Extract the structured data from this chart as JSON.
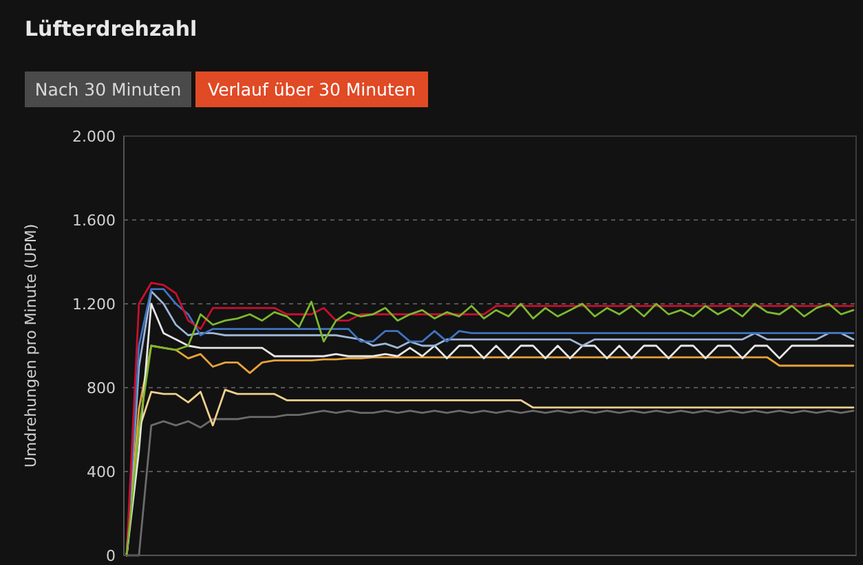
{
  "chart_data": {
    "type": "line",
    "title": "Lüfterdrehzahl",
    "ylabel": "Umdrehungen pro Minute (UPM)",
    "annotations": [
      "Nach 30 Minuten",
      "Verlauf über 30 Minuten"
    ],
    "categories": [
      null,
      null,
      null,
      null,
      null,
      null,
      null,
      null,
      null,
      null,
      null,
      null,
      null,
      null,
      null,
      null,
      null,
      null,
      null,
      null,
      null,
      null,
      null,
      null,
      null,
      null,
      null,
      null,
      null,
      null,
      null,
      null,
      null,
      null,
      null,
      null,
      null,
      null,
      null,
      null,
      null,
      null,
      null,
      null,
      null,
      null,
      null,
      null,
      null,
      null,
      null,
      null,
      null,
      null,
      null,
      null,
      null,
      null,
      null,
      null
    ],
    "ylim": [
      0,
      2000
    ],
    "yticks": [
      {
        "value": 0,
        "label": "0"
      },
      {
        "value": 400,
        "label": "400"
      },
      {
        "value": 800,
        "label": "800"
      },
      {
        "value": 1200,
        "label": "1.200"
      },
      {
        "value": 1600,
        "label": "1.600"
      },
      {
        "value": 2000,
        "label": "2.000"
      }
    ],
    "grid": "y",
    "tick_labels": "y",
    "marker": "none",
    "line_style": "solid",
    "series": [
      {
        "color": "#6b6b6b",
        "values": [
          0,
          0,
          620,
          640,
          620,
          640,
          610,
          650,
          650,
          650,
          660,
          660,
          660,
          670,
          670,
          680,
          690,
          680,
          690,
          680,
          680,
          690,
          680,
          690,
          680,
          690,
          680,
          690,
          680,
          690,
          680,
          690,
          680,
          690,
          680,
          690,
          680,
          690,
          680,
          690,
          680,
          690,
          680,
          690,
          680,
          690,
          680,
          690,
          680,
          690,
          680,
          690,
          680,
          690,
          680,
          690,
          680,
          690,
          680,
          690
        ]
      },
      {
        "color": "#f2d08e",
        "values": [
          0,
          600,
          780,
          770,
          770,
          730,
          780,
          620,
          790,
          770,
          770,
          770,
          770,
          740,
          740,
          740,
          740,
          740,
          740,
          740,
          740,
          740,
          740,
          740,
          740,
          740,
          740,
          740,
          740,
          740,
          740,
          740,
          740,
          705,
          705,
          705,
          705,
          705,
          705,
          705,
          705,
          705,
          705,
          705,
          705,
          705,
          705,
          705,
          705,
          705,
          705,
          705,
          705,
          705,
          705,
          705,
          705,
          705,
          705,
          705
        ]
      },
      {
        "color": "#e8a33a",
        "values": [
          0,
          700,
          1000,
          990,
          980,
          940,
          960,
          900,
          920,
          920,
          870,
          920,
          930,
          930,
          930,
          930,
          935,
          935,
          940,
          940,
          945,
          945,
          945,
          945,
          945,
          945,
          945,
          945,
          945,
          945,
          945,
          945,
          945,
          945,
          945,
          945,
          945,
          945,
          945,
          945,
          945,
          945,
          945,
          945,
          945,
          945,
          945,
          945,
          945,
          945,
          945,
          945,
          945,
          905,
          905,
          905,
          905,
          905,
          905,
          905
        ]
      },
      {
        "color": "#e6e6e6",
        "values": [
          0,
          500,
          1200,
          1060,
          1030,
          1000,
          990,
          990,
          990,
          990,
          990,
          990,
          950,
          950,
          950,
          950,
          950,
          960,
          950,
          950,
          950,
          960,
          950,
          990,
          950,
          1000,
          940,
          1000,
          1000,
          940,
          1000,
          940,
          1000,
          1000,
          940,
          1000,
          940,
          1000,
          1000,
          940,
          1000,
          940,
          1000,
          1000,
          940,
          1000,
          1000,
          940,
          1000,
          1000,
          940,
          1000,
          1000,
          940,
          1000,
          1000,
          1000,
          1000,
          1000,
          1000
        ]
      },
      {
        "color": "#9fb6d6",
        "values": [
          0,
          900,
          1260,
          1200,
          1100,
          1050,
          1060,
          1060,
          1050,
          1050,
          1050,
          1050,
          1050,
          1050,
          1050,
          1050,
          1050,
          1050,
          1040,
          1030,
          1000,
          1010,
          990,
          1020,
          1000,
          1000,
          1030,
          1030,
          1030,
          1030,
          1030,
          1030,
          1030,
          1030,
          1030,
          1030,
          1030,
          1000,
          1030,
          1030,
          1030,
          1030,
          1030,
          1030,
          1030,
          1030,
          1030,
          1030,
          1030,
          1030,
          1030,
          1060,
          1030,
          1030,
          1030,
          1030,
          1030,
          1060,
          1060,
          1030
        ]
      },
      {
        "color": "#3f74c0",
        "values": [
          0,
          1000,
          1270,
          1270,
          1200,
          1150,
          1050,
          1080,
          1080,
          1080,
          1080,
          1080,
          1080,
          1080,
          1080,
          1080,
          1080,
          1080,
          1080,
          1020,
          1020,
          1070,
          1070,
          1020,
          1020,
          1070,
          1020,
          1070,
          1060,
          1060,
          1060,
          1060,
          1060,
          1060,
          1060,
          1060,
          1060,
          1060,
          1060,
          1060,
          1060,
          1060,
          1060,
          1060,
          1060,
          1060,
          1060,
          1060,
          1060,
          1060,
          1060,
          1060,
          1060,
          1060,
          1060,
          1060,
          1060,
          1060,
          1060,
          1060
        ]
      },
      {
        "color": "#c8102e",
        "values": [
          0,
          1200,
          1300,
          1290,
          1250,
          1120,
          1080,
          1180,
          1180,
          1180,
          1180,
          1180,
          1180,
          1150,
          1150,
          1150,
          1180,
          1120,
          1120,
          1150,
          1150,
          1150,
          1150,
          1150,
          1150,
          1150,
          1150,
          1150,
          1150,
          1150,
          1190,
          1190,
          1190,
          1190,
          1190,
          1190,
          1190,
          1190,
          1190,
          1190,
          1190,
          1190,
          1190,
          1190,
          1190,
          1190,
          1190,
          1190,
          1190,
          1190,
          1190,
          1190,
          1190,
          1190,
          1190,
          1190,
          1190,
          1190,
          1190,
          1190
        ]
      },
      {
        "color": "#7cb82f",
        "values": [
          0,
          600,
          1000,
          990,
          980,
          1000,
          1150,
          1100,
          1120,
          1130,
          1150,
          1120,
          1160,
          1140,
          1090,
          1210,
          1020,
          1120,
          1160,
          1140,
          1150,
          1180,
          1120,
          1150,
          1170,
          1130,
          1160,
          1140,
          1190,
          1130,
          1170,
          1140,
          1200,
          1130,
          1180,
          1140,
          1170,
          1200,
          1140,
          1180,
          1150,
          1190,
          1140,
          1200,
          1150,
          1170,
          1140,
          1190,
          1150,
          1180,
          1140,
          1200,
          1160,
          1150,
          1190,
          1140,
          1180,
          1200,
          1150,
          1170
        ]
      }
    ]
  }
}
